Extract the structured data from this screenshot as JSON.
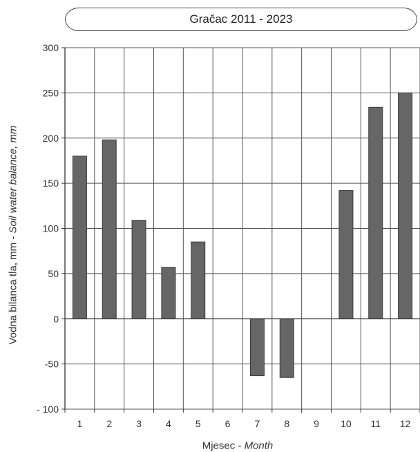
{
  "chart_data": {
    "type": "bar",
    "title": "Gračac 2011 - 2023",
    "categories": [
      "1",
      "2",
      "3",
      "4",
      "5",
      "6",
      "7",
      "8",
      "9",
      "10",
      "11",
      "12"
    ],
    "values": [
      180,
      198,
      109,
      57,
      85,
      0,
      -63,
      -65,
      0,
      142,
      234,
      250
    ],
    "ylim": [
      -100,
      300
    ],
    "yticks": [
      "- 100",
      "-50",
      "0",
      "50",
      "100",
      "150",
      "200",
      "250",
      "300"
    ],
    "ytick_values": [
      -100,
      -50,
      0,
      50,
      100,
      150,
      200,
      250,
      300
    ],
    "ylabel": {
      "plain": "Vodna bilanca tla, mm - ",
      "italic": "Soil water balance, mm"
    },
    "xlabel": {
      "plain": "Mjesec - ",
      "italic": "Month"
    },
    "grid": true,
    "bar_color": "#666666",
    "legend": "none"
  }
}
